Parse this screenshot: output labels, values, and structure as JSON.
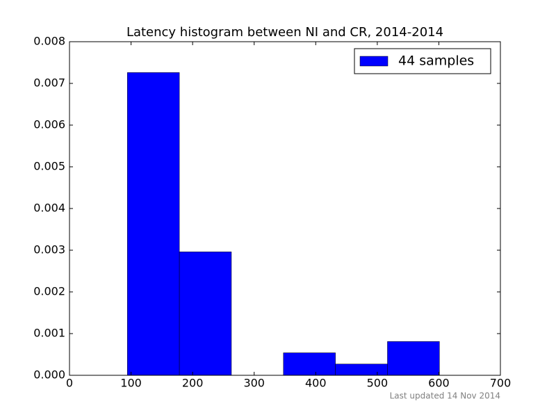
{
  "chart_data": {
    "type": "histogram",
    "title": "Latency histogram between NI and CR, 2014-2014",
    "bins": [
      94,
      178.5,
      263,
      347.5,
      432,
      516.5,
      601
    ],
    "series": [
      {
        "name": "44 samples",
        "color": "#0000ff",
        "values": [
          0.00726,
          0.00296,
          0,
          0.00054,
          0.00027,
          0.00081
        ]
      }
    ],
    "xlim": [
      0,
      700
    ],
    "xticks": [
      0,
      100,
      200,
      300,
      400,
      500,
      600,
      700
    ],
    "ylim": [
      0,
      0.008
    ],
    "yticks": [
      {
        "value": 0,
        "label": "0.000"
      },
      {
        "value": 0.001,
        "label": "0.001"
      },
      {
        "value": 0.002,
        "label": "0.002"
      },
      {
        "value": 0.003,
        "label": "0.003"
      },
      {
        "value": 0.004,
        "label": "0.004"
      },
      {
        "value": 0.005,
        "label": "0.005"
      },
      {
        "value": 0.006,
        "label": "0.006"
      },
      {
        "value": 0.007,
        "label": "0.007"
      },
      {
        "value": 0.008,
        "label": "0.008"
      }
    ],
    "legend": "upper right",
    "grid": false,
    "footnote": "Last updated 14 Nov 2014"
  }
}
